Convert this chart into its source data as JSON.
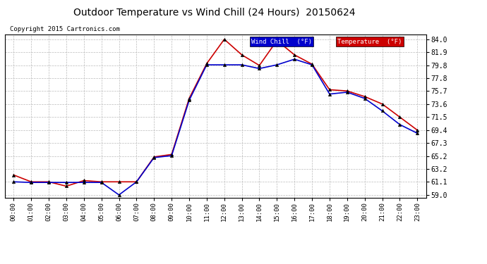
{
  "title": "Outdoor Temperature vs Wind Chill (24 Hours)  20150624",
  "copyright": "Copyright 2015 Cartronics.com",
  "x_labels": [
    "00:00",
    "01:00",
    "02:00",
    "03:00",
    "04:00",
    "05:00",
    "06:00",
    "07:00",
    "08:00",
    "09:00",
    "10:00",
    "11:00",
    "12:00",
    "13:00",
    "14:00",
    "15:00",
    "16:00",
    "17:00",
    "18:00",
    "19:00",
    "20:00",
    "21:00",
    "22:00",
    "23:00"
  ],
  "temperature": [
    62.2,
    61.1,
    61.1,
    60.4,
    61.3,
    61.1,
    61.1,
    61.1,
    65.1,
    65.5,
    74.5,
    80.1,
    84.0,
    81.5,
    79.8,
    83.8,
    81.5,
    80.0,
    75.9,
    75.7,
    74.8,
    73.6,
    71.5,
    69.4
  ],
  "wind_chill": [
    61.1,
    61.0,
    61.0,
    61.0,
    61.0,
    61.0,
    59.0,
    61.1,
    65.0,
    65.3,
    74.2,
    79.9,
    79.9,
    79.9,
    79.3,
    79.9,
    80.8,
    79.9,
    75.2,
    75.5,
    74.5,
    72.5,
    70.3,
    68.9
  ],
  "y_ticks": [
    59.0,
    61.1,
    63.2,
    65.2,
    67.3,
    69.4,
    71.5,
    73.6,
    75.7,
    77.8,
    79.8,
    81.9,
    84.0
  ],
  "ylim": [
    58.5,
    84.8
  ],
  "temp_color": "#cc0000",
  "wind_color": "#0000cc",
  "bg_color": "#ffffff",
  "grid_color": "#bbbbbb",
  "legend_wind_bg": "#0000cc",
  "legend_temp_bg": "#cc0000",
  "legend_text_color": "#ffffff"
}
